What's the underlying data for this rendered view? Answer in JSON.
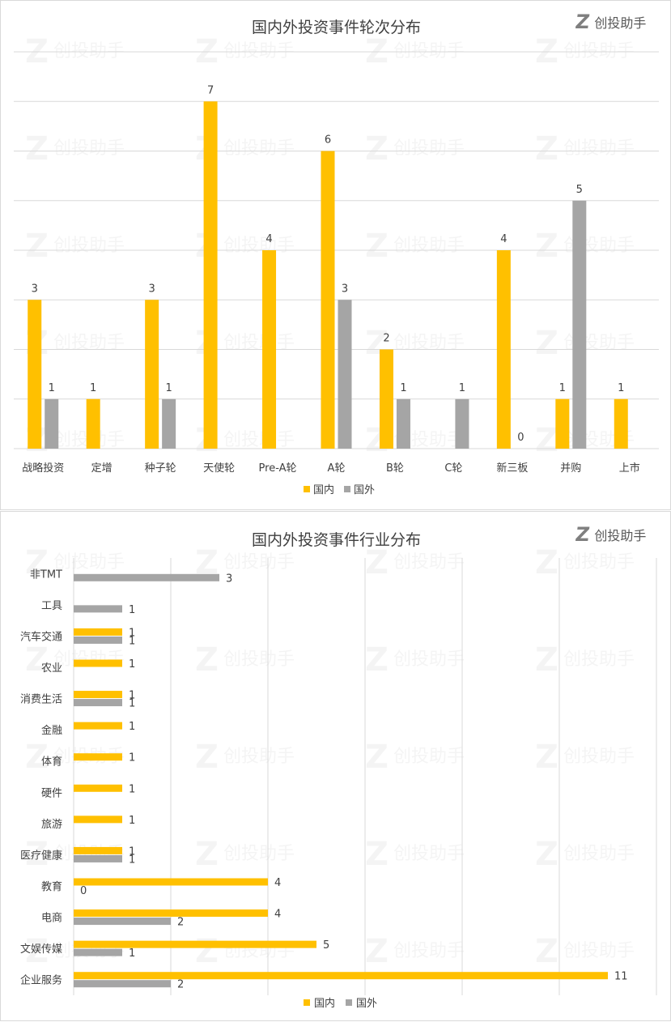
{
  "brand": {
    "logo_glyph": "Z",
    "name": "创投助手"
  },
  "colors": {
    "domestic": "#FFC000",
    "foreign": "#A5A5A5",
    "grid": "#d9d9d9",
    "text": "#404040"
  },
  "chart_data": [
    {
      "type": "bar",
      "orientation": "vertical",
      "title": "国内外投资事件轮次分布",
      "categories": [
        "战略投资",
        "定增",
        "种子轮",
        "天使轮",
        "Pre-A轮",
        "A轮",
        "B轮",
        "C轮",
        "新三板",
        "并购",
        "上市"
      ],
      "series": [
        {
          "name": "国内",
          "values": [
            3,
            1,
            3,
            7,
            4,
            6,
            2,
            null,
            4,
            1,
            1
          ]
        },
        {
          "name": "国外",
          "values": [
            1,
            null,
            1,
            null,
            null,
            3,
            1,
            1,
            0,
            5,
            null
          ]
        }
      ],
      "ylim": [
        0,
        8
      ],
      "grid": true,
      "legend": "bottom"
    },
    {
      "type": "bar",
      "orientation": "horizontal",
      "title": "国内外投资事件行业分布",
      "categories": [
        "非TMT",
        "工具",
        "汽车交通",
        "农业",
        "消费生活",
        "金融",
        "体育",
        "硬件",
        "旅游",
        "医疗健康",
        "教育",
        "电商",
        "文娱传媒",
        "企业服务"
      ],
      "series": [
        {
          "name": "国内",
          "values": [
            null,
            null,
            1,
            1,
            1,
            1,
            1,
            1,
            1,
            1,
            4,
            4,
            5,
            11
          ]
        },
        {
          "name": "国外",
          "values": [
            3,
            1,
            1,
            null,
            1,
            null,
            null,
            null,
            null,
            1,
            0,
            2,
            1,
            2
          ]
        }
      ],
      "xlim": [
        0,
        12
      ],
      "grid": true,
      "legend": "bottom"
    }
  ]
}
